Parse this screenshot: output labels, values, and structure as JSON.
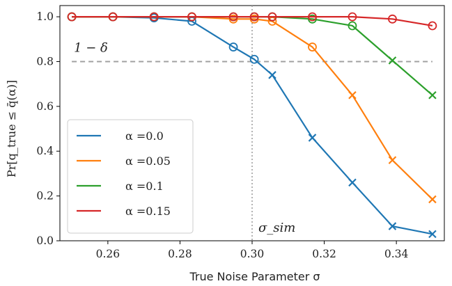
{
  "chart_data": {
    "type": "line",
    "xlabel": "True Noise Parameter σ",
    "ylabel": "Pr[q_true ≤ q̄(α)]",
    "xlim": [
      0.2467,
      0.3533
    ],
    "ylim": [
      0.0,
      1.05
    ],
    "x_ticks": [
      "0.26",
      "0.28",
      "0.30",
      "0.32",
      "0.34"
    ],
    "y_ticks": [
      "0.0",
      "0.2",
      "0.4",
      "0.6",
      "0.8",
      "1.0"
    ],
    "x": [
      0.25,
      0.2614,
      0.2728,
      0.2833,
      0.2948,
      0.3006,
      0.3056,
      0.3167,
      0.3278,
      0.3389,
      0.35
    ],
    "series": [
      {
        "name": "α =0.0",
        "color": "#1f77b4",
        "values": [
          1.0,
          1.0,
          0.995,
          0.98,
          0.865,
          0.81,
          0.74,
          0.46,
          0.26,
          0.065,
          0.03
        ],
        "markers": [
          "circle",
          "circle",
          "circle",
          "circle",
          "circle",
          "circle",
          "x",
          "x",
          "x",
          "x",
          "x"
        ]
      },
      {
        "name": "α =0.05",
        "color": "#ff7f0e",
        "values": [
          1.0,
          1.0,
          1.0,
          1.0,
          0.99,
          0.99,
          0.98,
          0.865,
          0.65,
          0.36,
          0.185
        ],
        "markers": [
          "circle",
          "circle",
          "circle",
          "circle",
          "circle",
          "circle",
          "circle",
          "circle",
          "x",
          "x",
          "x"
        ]
      },
      {
        "name": "α =0.1",
        "color": "#2ca02c",
        "values": [
          1.0,
          1.0,
          1.0,
          1.0,
          1.0,
          1.0,
          1.0,
          0.99,
          0.96,
          0.805,
          0.65
        ],
        "markers": [
          "circle",
          "circle",
          "circle",
          "circle",
          "circle",
          "circle",
          "circle",
          "circle",
          "circle",
          "x",
          "x"
        ]
      },
      {
        "name": "α =0.15",
        "color": "#d62728",
        "values": [
          1.0,
          1.0,
          1.0,
          1.0,
          1.0,
          1.0,
          1.0,
          1.0,
          1.0,
          0.99,
          0.96
        ],
        "markers": [
          "circle",
          "circle",
          "circle",
          "circle",
          "circle",
          "circle",
          "circle",
          "circle",
          "circle",
          "circle",
          "circle"
        ]
      }
    ],
    "hline": {
      "y": 0.8,
      "label": "1 − δ",
      "color": "#a0a0a0"
    },
    "vline": {
      "x": 0.3,
      "label": "σ_sim",
      "color": "#a0a0a0"
    },
    "legend_position": "lower-left",
    "grid": false
  }
}
